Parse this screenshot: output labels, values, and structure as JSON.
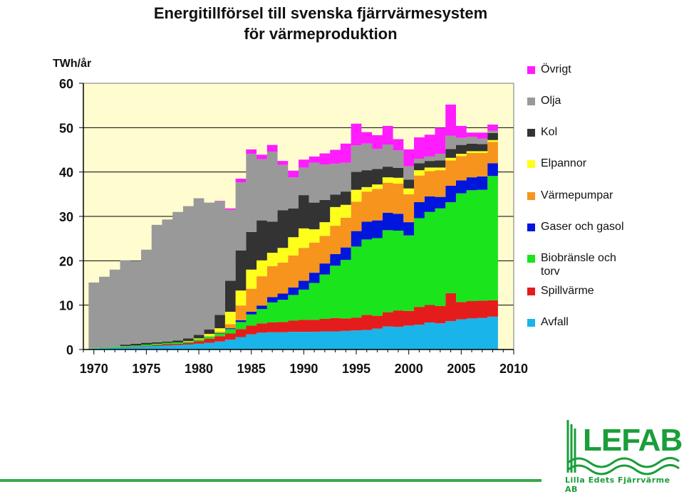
{
  "chart_data": {
    "type": "area",
    "title": "Energitillförsel till svenska fjärrvärmesystem\nför värmeproduktion",
    "ylabel": "TWh/år",
    "ylim": [
      0,
      60
    ],
    "xlim": [
      1969,
      2010
    ],
    "xticks": [
      "1970",
      "1975",
      "1980",
      "1985",
      "1990",
      "1995",
      "2000",
      "2005",
      "2010"
    ],
    "yticks": [
      "0",
      "10",
      "20",
      "30",
      "40",
      "50",
      "60"
    ],
    "grid": "horizontal",
    "legend_position": "right",
    "stacked": true,
    "x": [
      1970,
      1971,
      1972,
      1973,
      1974,
      1975,
      1976,
      1977,
      1978,
      1979,
      1980,
      1981,
      1982,
      1983,
      1984,
      1985,
      1986,
      1987,
      1988,
      1989,
      1990,
      1991,
      1992,
      1993,
      1994,
      1995,
      1996,
      1997,
      1998,
      1999,
      2000,
      2001,
      2002,
      2003,
      2004,
      2005,
      2006,
      2007,
      2008
    ],
    "series": [
      {
        "name": "Avfall",
        "color": "#19b4ea",
        "values": [
          0.2,
          0.3,
          0.4,
          0.5,
          0.6,
          0.7,
          0.8,
          0.9,
          1.0,
          1.1,
          1.3,
          1.5,
          1.8,
          2.2,
          2.8,
          3.4,
          3.8,
          3.9,
          3.9,
          4.0,
          4.0,
          4.0,
          4.1,
          4.1,
          4.2,
          4.3,
          4.4,
          4.7,
          5.2,
          5.1,
          5.4,
          5.6,
          6.1,
          5.9,
          6.4,
          6.8,
          7.0,
          7.1,
          7.4
        ]
      },
      {
        "name": "Spillvärme",
        "color": "#e51c1c",
        "values": [
          0.0,
          0.0,
          0.0,
          0.1,
          0.1,
          0.1,
          0.2,
          0.3,
          0.3,
          0.4,
          0.6,
          0.9,
          1.2,
          1.4,
          1.8,
          2.0,
          2.1,
          2.2,
          2.3,
          2.5,
          2.7,
          2.7,
          2.8,
          3.0,
          2.8,
          2.9,
          3.4,
          2.9,
          3.2,
          3.7,
          3.3,
          4.0,
          3.9,
          3.9,
          6.3,
          3.9,
          3.9,
          3.9,
          3.7
        ]
      },
      {
        "name": "Biobränsle och torv",
        "color": "#19e41c",
        "values": [
          0.1,
          0.1,
          0.2,
          0.2,
          0.2,
          0.3,
          0.3,
          0.3,
          0.3,
          0.3,
          0.4,
          0.5,
          0.6,
          1.0,
          1.6,
          2.5,
          3.2,
          4.5,
          5.0,
          5.8,
          6.8,
          8.3,
          10.0,
          11.8,
          13.2,
          16.0,
          17.0,
          17.5,
          18.5,
          18.0,
          17.0,
          20.0,
          21.0,
          22.0,
          20.5,
          24.5,
          25.0,
          25.0,
          28.0
        ]
      },
      {
        "name": "Gaser och gasol",
        "color": "#0016dc",
        "values": [
          0.0,
          0.0,
          0.0,
          0.0,
          0.0,
          0.0,
          0.0,
          0.0,
          0.0,
          0.0,
          0.0,
          0.0,
          0.1,
          0.2,
          0.4,
          0.6,
          0.8,
          1.2,
          1.4,
          1.7,
          2.0,
          2.3,
          2.5,
          2.6,
          2.8,
          3.5,
          4.0,
          4.0,
          3.9,
          3.8,
          3.0,
          3.6,
          3.5,
          2.6,
          3.7,
          2.9,
          2.9,
          3.0,
          2.9
        ]
      },
      {
        "name": "Värmepumpar",
        "color": "#f7941d",
        "values": [
          0.0,
          0.0,
          0.0,
          0.0,
          0.0,
          0.0,
          0.0,
          0.0,
          0.0,
          0.0,
          0.0,
          0.1,
          0.3,
          0.9,
          3.3,
          5.2,
          6.6,
          7.0,
          7.0,
          7.2,
          7.4,
          6.8,
          6.2,
          6.4,
          6.7,
          6.6,
          6.8,
          7.1,
          6.8,
          6.8,
          6.3,
          6.0,
          5.7,
          6.0,
          5.7,
          5.5,
          5.5,
          5.3,
          4.8
        ]
      },
      {
        "name": "Elpannor",
        "color": "#ffff1c",
        "values": [
          0.0,
          0.0,
          0.0,
          0.0,
          0.0,
          0.0,
          0.0,
          0.0,
          0.0,
          0.1,
          0.2,
          0.5,
          0.8,
          2.8,
          3.4,
          4.3,
          3.6,
          3.0,
          3.3,
          4.1,
          4.4,
          3.0,
          3.1,
          4.2,
          2.9,
          2.7,
          1.0,
          1.0,
          1.2,
          1.3,
          1.3,
          1.2,
          0.8,
          0.6,
          0.6,
          0.5,
          0.4,
          0.4,
          0.4
        ]
      },
      {
        "name": "Kol",
        "color": "#333333",
        "values": [
          0.0,
          0.0,
          0.0,
          0.3,
          0.4,
          0.4,
          0.3,
          0.3,
          0.4,
          0.6,
          0.8,
          1.0,
          3.0,
          7.0,
          9.0,
          8.5,
          9.0,
          7.0,
          8.5,
          6.5,
          7.5,
          6.0,
          5.0,
          2.8,
          3.0,
          4.0,
          3.8,
          3.5,
          2.4,
          2.2,
          2.0,
          1.6,
          1.5,
          1.6,
          2.0,
          2.0,
          1.7,
          1.6,
          1.6
        ]
      },
      {
        "name": "Olja",
        "color": "#999999",
        "values": [
          14.8,
          16.0,
          17.4,
          19.0,
          18.7,
          21.0,
          26.5,
          27.5,
          29.0,
          29.8,
          30.8,
          28.6,
          25.6,
          16.0,
          15.4,
          17.6,
          13.8,
          15.8,
          10.2,
          7.0,
          6.2,
          9.0,
          8.0,
          7.0,
          6.5,
          6.0,
          6.0,
          4.5,
          5.0,
          4.0,
          3.0,
          1.0,
          1.0,
          1.5,
          3.0,
          1.6,
          1.5,
          1.2,
          0.5
        ]
      },
      {
        "name": "Övrigt",
        "color": "#ff1cff",
        "values": [
          0.0,
          0.0,
          0.0,
          0.0,
          0.0,
          0.0,
          0.0,
          0.0,
          0.0,
          0.0,
          0.0,
          0.0,
          0.1,
          0.3,
          0.8,
          1.0,
          1.0,
          1.5,
          0.9,
          1.5,
          1.8,
          1.4,
          2.5,
          3.1,
          4.3,
          4.9,
          2.6,
          3.1,
          4.2,
          2.5,
          3.8,
          4.8,
          4.9,
          5.9,
          7.0,
          2.7,
          1.0,
          1.4,
          1.4
        ]
      }
    ]
  },
  "legend": {
    "items": [
      "Övrigt",
      "Olja",
      "Kol",
      "Elpannor",
      "Värmepumpar",
      "Gaser och gasol",
      "Biobränsle och\ntorv",
      "Spillvärme",
      "Avfall"
    ]
  },
  "logo": {
    "word": "LEFAB",
    "tagline": "Lilla Edets Fjärrvärme AB",
    "color": "#1a9e3a"
  },
  "colors": {
    "plot_background": "#fffcd0",
    "footer_line": "#35a94a"
  }
}
